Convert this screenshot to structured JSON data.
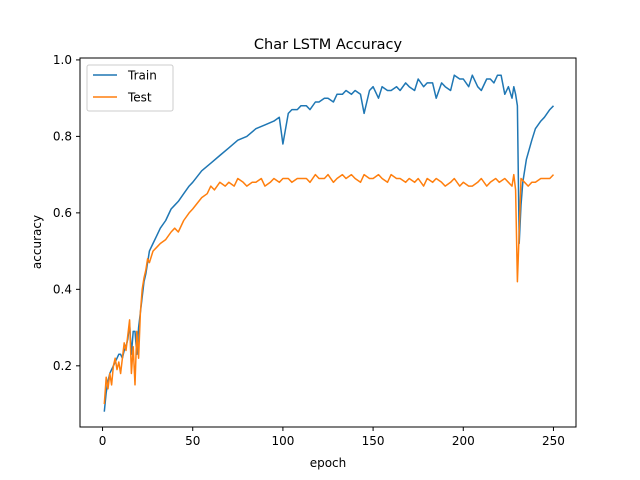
{
  "chart_data": {
    "type": "line",
    "title": "Char LSTM Accuracy",
    "xlabel": "epoch",
    "ylabel": "accuracy",
    "xlim": [
      -12.5,
      262.5
    ],
    "ylim": [
      0.04,
      1.005
    ],
    "xticks": [
      0,
      50,
      100,
      150,
      200,
      250
    ],
    "yticks": [
      0.2,
      0.4,
      0.6,
      0.8,
      1.0
    ],
    "ytick_labels": [
      "0.2",
      "0.4",
      "0.6",
      "0.8",
      "1.0"
    ],
    "grid": false,
    "legend_position": "top-left",
    "series": [
      {
        "name": "Train",
        "color": "#1f77b4",
        "x": [
          1,
          2,
          3,
          4,
          5,
          6,
          7,
          8,
          9,
          10,
          11,
          12,
          13,
          14,
          15,
          16,
          17,
          18,
          19,
          20,
          21,
          22,
          23,
          24,
          25,
          26,
          28,
          30,
          32,
          35,
          38,
          40,
          42,
          45,
          48,
          50,
          55,
          60,
          65,
          70,
          75,
          80,
          85,
          90,
          95,
          98,
          100,
          103,
          105,
          108,
          110,
          113,
          115,
          118,
          120,
          123,
          125,
          128,
          130,
          133,
          135,
          138,
          140,
          143,
          145,
          148,
          150,
          153,
          155,
          158,
          160,
          163,
          165,
          168,
          170,
          173,
          175,
          178,
          180,
          183,
          185,
          188,
          190,
          193,
          195,
          198,
          200,
          203,
          205,
          208,
          210,
          213,
          215,
          217,
          219,
          221,
          223,
          225,
          227,
          228,
          229,
          230,
          231,
          232,
          233,
          235,
          238,
          240,
          243,
          245,
          248,
          250
        ],
        "y": [
          0.08,
          0.13,
          0.16,
          0.18,
          0.19,
          0.2,
          0.21,
          0.22,
          0.23,
          0.23,
          0.22,
          0.24,
          0.25,
          0.27,
          0.31,
          0.23,
          0.29,
          0.29,
          0.23,
          0.3,
          0.34,
          0.38,
          0.42,
          0.44,
          0.47,
          0.5,
          0.52,
          0.54,
          0.56,
          0.58,
          0.61,
          0.62,
          0.63,
          0.65,
          0.67,
          0.68,
          0.71,
          0.73,
          0.75,
          0.77,
          0.79,
          0.8,
          0.82,
          0.83,
          0.84,
          0.85,
          0.78,
          0.86,
          0.87,
          0.87,
          0.88,
          0.88,
          0.87,
          0.89,
          0.89,
          0.9,
          0.9,
          0.89,
          0.91,
          0.91,
          0.92,
          0.91,
          0.92,
          0.91,
          0.86,
          0.92,
          0.93,
          0.9,
          0.93,
          0.92,
          0.92,
          0.93,
          0.92,
          0.94,
          0.93,
          0.92,
          0.95,
          0.93,
          0.94,
          0.94,
          0.9,
          0.94,
          0.93,
          0.92,
          0.96,
          0.95,
          0.95,
          0.93,
          0.96,
          0.93,
          0.92,
          0.95,
          0.95,
          0.94,
          0.96,
          0.96,
          0.91,
          0.93,
          0.9,
          0.93,
          0.91,
          0.88,
          0.52,
          0.62,
          0.68,
          0.74,
          0.79,
          0.82,
          0.84,
          0.85,
          0.87,
          0.88
        ]
      },
      {
        "name": "Test",
        "color": "#ff7f0e",
        "x": [
          1,
          2,
          3,
          4,
          5,
          6,
          7,
          8,
          9,
          10,
          11,
          12,
          13,
          14,
          15,
          16,
          17,
          18,
          19,
          20,
          21,
          22,
          23,
          24,
          25,
          26,
          28,
          30,
          32,
          35,
          38,
          40,
          42,
          45,
          48,
          50,
          55,
          58,
          60,
          62,
          65,
          68,
          70,
          73,
          75,
          78,
          80,
          83,
          85,
          88,
          90,
          93,
          95,
          98,
          100,
          103,
          105,
          108,
          110,
          113,
          115,
          118,
          120,
          123,
          125,
          128,
          130,
          133,
          135,
          138,
          140,
          143,
          145,
          148,
          150,
          153,
          155,
          158,
          160,
          163,
          165,
          168,
          170,
          173,
          175,
          178,
          180,
          183,
          185,
          188,
          190,
          193,
          195,
          198,
          200,
          203,
          205,
          208,
          210,
          213,
          215,
          218,
          220,
          223,
          225,
          227,
          228,
          229,
          230,
          231,
          232,
          234,
          236,
          238,
          240,
          243,
          245,
          248,
          250
        ],
        "y": [
          0.1,
          0.17,
          0.14,
          0.18,
          0.15,
          0.2,
          0.22,
          0.19,
          0.21,
          0.18,
          0.22,
          0.26,
          0.24,
          0.28,
          0.32,
          0.18,
          0.25,
          0.15,
          0.29,
          0.22,
          0.34,
          0.4,
          0.43,
          0.45,
          0.48,
          0.47,
          0.5,
          0.51,
          0.52,
          0.53,
          0.55,
          0.56,
          0.55,
          0.58,
          0.6,
          0.61,
          0.64,
          0.65,
          0.67,
          0.66,
          0.68,
          0.67,
          0.68,
          0.67,
          0.69,
          0.68,
          0.67,
          0.68,
          0.68,
          0.69,
          0.67,
          0.68,
          0.69,
          0.68,
          0.69,
          0.69,
          0.68,
          0.69,
          0.69,
          0.69,
          0.68,
          0.7,
          0.69,
          0.69,
          0.7,
          0.68,
          0.69,
          0.7,
          0.69,
          0.7,
          0.69,
          0.68,
          0.7,
          0.69,
          0.69,
          0.7,
          0.69,
          0.68,
          0.7,
          0.69,
          0.69,
          0.68,
          0.69,
          0.68,
          0.69,
          0.67,
          0.69,
          0.68,
          0.69,
          0.68,
          0.67,
          0.68,
          0.69,
          0.67,
          0.68,
          0.67,
          0.67,
          0.68,
          0.69,
          0.67,
          0.68,
          0.69,
          0.68,
          0.69,
          0.68,
          0.67,
          0.7,
          0.66,
          0.42,
          0.55,
          0.69,
          0.68,
          0.67,
          0.68,
          0.68,
          0.69,
          0.69,
          0.69,
          0.7
        ]
      }
    ]
  }
}
